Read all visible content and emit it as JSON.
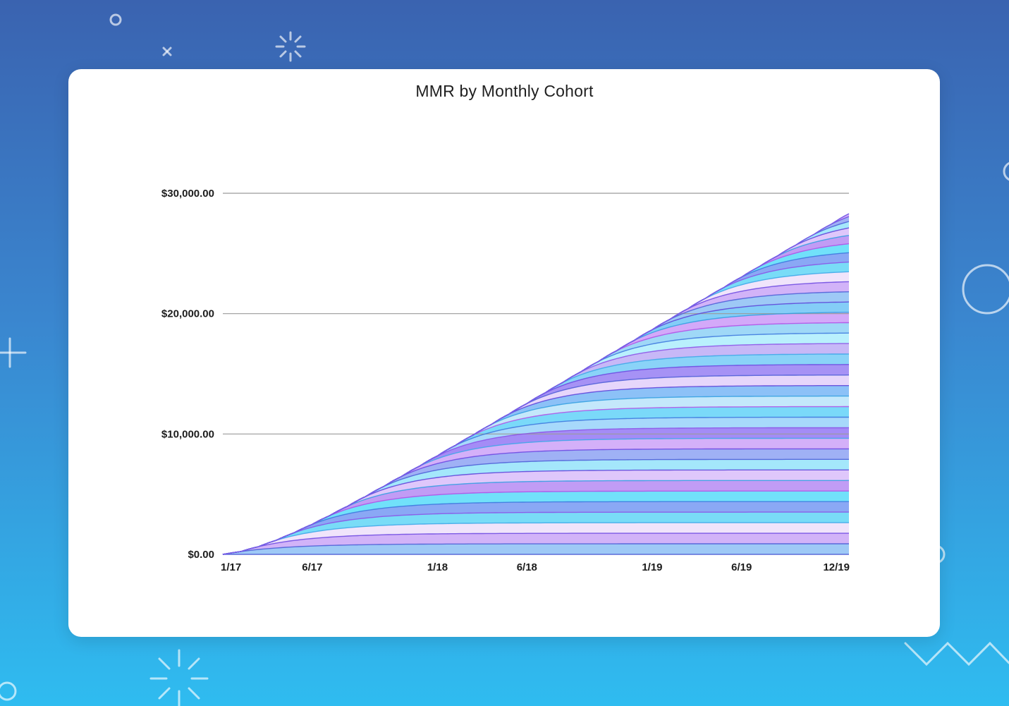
{
  "chart_data": {
    "type": "area",
    "title": "MMR by Monthly Cohort",
    "xlabel": "",
    "ylabel": "",
    "ylim": [
      0,
      30000
    ],
    "yticks": [
      "$0.00",
      "$10,000.00",
      "$20,000.00",
      "$30,000.00"
    ],
    "ytick_values": [
      0,
      10000,
      20000,
      30000
    ],
    "xticks": [
      "1/17",
      "6/17",
      "1/18",
      "6/18",
      "1/19",
      "6/19",
      "12/19"
    ],
    "xtick_months": [
      0,
      5,
      12,
      17,
      24,
      29,
      35
    ],
    "stacked": true,
    "cohort_count": 36,
    "cohort_start_months": [
      0,
      1,
      2,
      3,
      4,
      5,
      6,
      7,
      8,
      9,
      10,
      11,
      12,
      13,
      14,
      15,
      16,
      17,
      18,
      19,
      20,
      21,
      22,
      23,
      24,
      25,
      26,
      27,
      28,
      29,
      30,
      31,
      32,
      33,
      34,
      35
    ],
    "cohort_final_mrr": [
      1000,
      1000,
      1000,
      1000,
      1000,
      1000,
      1000,
      1000,
      1000,
      1000,
      1000,
      1000,
      1000,
      1000,
      1000,
      1000,
      1000,
      1000,
      1000,
      1000,
      1000,
      1000,
      1000,
      1000,
      1000,
      1000,
      1000,
      1000,
      1000,
      1000,
      1000,
      1000,
      1000,
      1000,
      1000,
      1000
    ],
    "total_mrr_end": 28300,
    "grid": true,
    "legend": "none"
  },
  "colors": {
    "palette": [
      "#9ec9f6",
      "#d2b3f8",
      "#f0e4fb",
      "#79dcf7",
      "#8aa8f5",
      "#71e1fa",
      "#c19cf5",
      "#dfc7fb",
      "#a4e7fb",
      "#9fb1f5",
      "#d4b0f9",
      "#a48cf6",
      "#a7d9fb",
      "#7ad9f9",
      "#c4e8fb",
      "#8cc1f7",
      "#e6d6fb",
      "#a692f5",
      "#8ad3f8",
      "#c7b8f7",
      "#b9f0fd",
      "#9fd8f7",
      "#d3a9f9",
      "#84cdf7"
    ],
    "line_palette": [
      "#4a5bd6",
      "#6a45e0",
      "#3aa6e8",
      "#8a4fe6",
      "#3a74dd",
      "#b04de6",
      "#2f9de0",
      "#5b3fd8"
    ],
    "grid": "#9a9a9a",
    "background_top": "#3a63b0",
    "background_bottom": "#2fbcf0"
  },
  "decorations": {
    "icons": [
      "ring-icon",
      "x-mark-icon",
      "sparkle-icon",
      "plus-icon",
      "circle-icon",
      "zigzag-icon"
    ]
  }
}
